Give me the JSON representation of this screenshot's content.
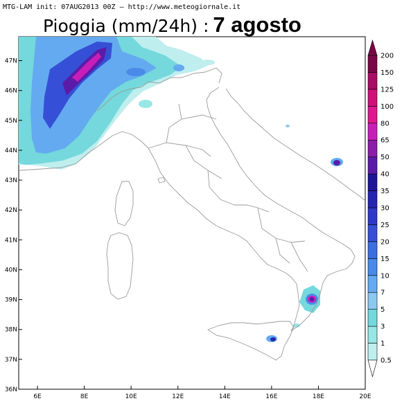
{
  "header": {
    "init_line": "MTG-LAM init: 07AUG2013 00Z — http://www.meteogiornale.it"
  },
  "title": {
    "main": "Pioggia (mm/24h) :",
    "date": "7 agosto"
  },
  "map": {
    "lat_labels": [
      "47N",
      "46N",
      "45N",
      "44N",
      "43N",
      "42N",
      "41N",
      "40N",
      "39N",
      "38N",
      "37N",
      "36N"
    ],
    "lon_labels": [
      "6E",
      "8E",
      "10E",
      "12E",
      "14E",
      "16E",
      "18E",
      "20E"
    ],
    "lat_values": [
      47,
      46,
      45,
      44,
      43,
      42,
      41,
      40,
      39,
      38,
      37,
      36
    ],
    "lon_values": [
      6,
      8,
      10,
      12,
      14,
      16,
      18,
      20
    ],
    "lon_range": [
      5.2,
      20
    ],
    "lat_range": [
      36,
      47.8
    ]
  },
  "colorbar": {
    "levels": [
      "0.5",
      "1",
      "3",
      "5",
      "7",
      "10",
      "15",
      "20",
      "25",
      "30",
      "35",
      "40",
      "50",
      "65",
      "80",
      "100",
      "125",
      "150",
      "200"
    ],
    "colors": [
      "#e8f8f8",
      "#bfeeee",
      "#98e6e6",
      "#74d8dc",
      "#8cc8f0",
      "#64aaf0",
      "#4a8ae8",
      "#3c6ee0",
      "#3550d6",
      "#2e38c8",
      "#2426b0",
      "#1c1696",
      "#5a1ca8",
      "#8a1ea8",
      "#c81eb8",
      "#e01890",
      "#d0107a",
      "#a80c64",
      "#7a0848"
    ]
  },
  "precip_colors": {
    "light": "#bfeeee",
    "light2": "#98e6e6",
    "medium": "#74d8dc",
    "blue1": "#8cc8f0",
    "blue2": "#64aaf0",
    "blue3": "#4a8ae8",
    "blue4": "#3550d6",
    "dark": "#2426b0",
    "purple": "#5a1ca8",
    "magenta": "#c81eb8",
    "hot": "#e01890"
  }
}
